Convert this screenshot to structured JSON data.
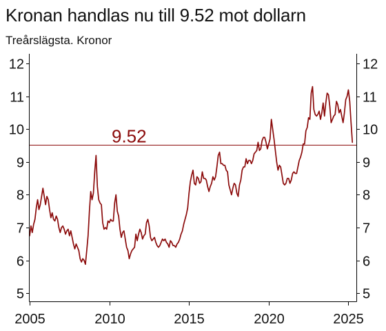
{
  "chart_data": {
    "type": "line",
    "title": "Kronan handlas nu till 9.52 mot dollarn",
    "subtitle": "Treårslägsta. Kronor",
    "xlabel": "",
    "ylabel": "",
    "x_ticks": [
      2005,
      2010,
      2015,
      2020,
      2025
    ],
    "y_ticks": [
      5,
      6,
      7,
      8,
      9,
      10,
      11,
      12
    ],
    "xlim": [
      "2005-01",
      "2025-07"
    ],
    "ylim": [
      4.75,
      12.3
    ],
    "y_axis_right": true,
    "grid": false,
    "reference_line": {
      "value": 9.52,
      "label": "9.52"
    },
    "x": [
      "2005-01",
      "2005-02",
      "2005-03",
      "2005-04",
      "2005-05",
      "2005-06",
      "2005-07",
      "2005-08",
      "2005-09",
      "2005-10",
      "2005-11",
      "2005-12",
      "2006-01",
      "2006-02",
      "2006-03",
      "2006-04",
      "2006-05",
      "2006-06",
      "2006-07",
      "2006-08",
      "2006-09",
      "2006-10",
      "2006-11",
      "2006-12",
      "2007-01",
      "2007-02",
      "2007-03",
      "2007-04",
      "2007-05",
      "2007-06",
      "2007-07",
      "2007-08",
      "2007-09",
      "2007-10",
      "2007-11",
      "2007-12",
      "2008-01",
      "2008-02",
      "2008-03",
      "2008-04",
      "2008-05",
      "2008-06",
      "2008-07",
      "2008-08",
      "2008-09",
      "2008-10",
      "2008-11",
      "2008-12",
      "2009-01",
      "2009-02",
      "2009-03",
      "2009-04",
      "2009-05",
      "2009-06",
      "2009-07",
      "2009-08",
      "2009-09",
      "2009-10",
      "2009-11",
      "2009-12",
      "2010-01",
      "2010-02",
      "2010-03",
      "2010-04",
      "2010-05",
      "2010-06",
      "2010-07",
      "2010-08",
      "2010-09",
      "2010-10",
      "2010-11",
      "2010-12",
      "2011-01",
      "2011-02",
      "2011-03",
      "2011-04",
      "2011-05",
      "2011-06",
      "2011-07",
      "2011-08",
      "2011-09",
      "2011-10",
      "2011-11",
      "2011-12",
      "2012-01",
      "2012-02",
      "2012-03",
      "2012-04",
      "2012-05",
      "2012-06",
      "2012-07",
      "2012-08",
      "2012-09",
      "2012-10",
      "2012-11",
      "2012-12",
      "2013-01",
      "2013-02",
      "2013-03",
      "2013-04",
      "2013-05",
      "2013-06",
      "2013-07",
      "2013-08",
      "2013-09",
      "2013-10",
      "2013-11",
      "2013-12",
      "2014-01",
      "2014-02",
      "2014-03",
      "2014-04",
      "2014-05",
      "2014-06",
      "2014-07",
      "2014-08",
      "2014-09",
      "2014-10",
      "2014-11",
      "2014-12",
      "2015-01",
      "2015-02",
      "2015-03",
      "2015-04",
      "2015-05",
      "2015-06",
      "2015-07",
      "2015-08",
      "2015-09",
      "2015-10",
      "2015-11",
      "2015-12",
      "2016-01",
      "2016-02",
      "2016-03",
      "2016-04",
      "2016-05",
      "2016-06",
      "2016-07",
      "2016-08",
      "2016-09",
      "2016-10",
      "2016-11",
      "2016-12",
      "2017-01",
      "2017-02",
      "2017-03",
      "2017-04",
      "2017-05",
      "2017-06",
      "2017-07",
      "2017-08",
      "2017-09",
      "2017-10",
      "2017-11",
      "2017-12",
      "2018-01",
      "2018-02",
      "2018-03",
      "2018-04",
      "2018-05",
      "2018-06",
      "2018-07",
      "2018-08",
      "2018-09",
      "2018-10",
      "2018-11",
      "2018-12",
      "2019-01",
      "2019-02",
      "2019-03",
      "2019-04",
      "2019-05",
      "2019-06",
      "2019-07",
      "2019-08",
      "2019-09",
      "2019-10",
      "2019-11",
      "2019-12",
      "2020-01",
      "2020-02",
      "2020-03",
      "2020-04",
      "2020-05",
      "2020-06",
      "2020-07",
      "2020-08",
      "2020-09",
      "2020-10",
      "2020-11",
      "2020-12",
      "2021-01",
      "2021-02",
      "2021-03",
      "2021-04",
      "2021-05",
      "2021-06",
      "2021-07",
      "2021-08",
      "2021-09",
      "2021-10",
      "2021-11",
      "2021-12",
      "2022-01",
      "2022-02",
      "2022-03",
      "2022-04",
      "2022-05",
      "2022-06",
      "2022-07",
      "2022-08",
      "2022-09",
      "2022-10",
      "2022-11",
      "2022-12",
      "2023-01",
      "2023-02",
      "2023-03",
      "2023-04",
      "2023-05",
      "2023-06",
      "2023-07",
      "2023-08",
      "2023-09",
      "2023-10",
      "2023-11",
      "2023-12",
      "2024-01",
      "2024-02",
      "2024-03",
      "2024-04",
      "2024-05",
      "2024-06",
      "2024-07",
      "2024-08",
      "2024-09",
      "2024-10",
      "2024-11",
      "2024-12",
      "2025-01",
      "2025-02",
      "2025-03",
      "2025-04"
    ],
    "y": [
      6.75,
      7.05,
      6.85,
      7.1,
      7.25,
      7.6,
      7.85,
      7.55,
      7.7,
      7.95,
      8.2,
      7.95,
      7.7,
      7.95,
      7.85,
      7.55,
      7.3,
      7.45,
      7.25,
      7.2,
      7.35,
      7.25,
      7.0,
      6.85,
      7.0,
      7.05,
      6.95,
      6.8,
      6.9,
      6.95,
      6.75,
      6.9,
      6.7,
      6.5,
      6.35,
      6.5,
      6.4,
      6.3,
      6.05,
      5.95,
      6.05,
      6.0,
      5.88,
      6.3,
      6.75,
      7.5,
      8.1,
      7.85,
      8.05,
      8.7,
      9.2,
      8.25,
      7.85,
      7.75,
      7.7,
      7.15,
      6.95,
      7.0,
      6.95,
      7.2,
      7.15,
      7.25,
      7.2,
      7.2,
      7.75,
      8.0,
      7.5,
      7.35,
      6.95,
      6.7,
      6.85,
      6.9,
      6.65,
      6.4,
      6.3,
      6.05,
      6.2,
      6.3,
      6.35,
      6.4,
      6.8,
      6.6,
      6.8,
      6.95,
      6.85,
      6.65,
      6.75,
      6.8,
      7.15,
      7.25,
      7.05,
      6.7,
      6.6,
      6.65,
      6.7,
      6.55,
      6.45,
      6.4,
      6.45,
      6.55,
      6.65,
      6.6,
      6.65,
      6.55,
      6.5,
      6.4,
      6.6,
      6.55,
      6.45,
      6.45,
      6.4,
      6.5,
      6.55,
      6.65,
      6.8,
      6.9,
      7.1,
      7.25,
      7.4,
      7.6,
      8.05,
      8.4,
      8.6,
      8.75,
      8.35,
      8.3,
      8.55,
      8.5,
      8.35,
      8.4,
      8.7,
      8.5,
      8.5,
      8.45,
      8.25,
      8.1,
      8.25,
      8.35,
      8.55,
      8.45,
      8.55,
      8.85,
      9.2,
      9.3,
      8.95,
      8.95,
      8.9,
      8.9,
      8.75,
      8.7,
      8.3,
      8.15,
      8.0,
      8.2,
      8.35,
      8.3,
      8.05,
      7.95,
      8.3,
      8.45,
      8.75,
      8.85,
      8.85,
      9.1,
      8.95,
      9.05,
      9.05,
      8.95,
      9.05,
      9.25,
      9.3,
      9.35,
      9.6,
      9.35,
      9.4,
      9.65,
      9.75,
      9.75,
      9.6,
      9.4,
      9.55,
      9.7,
      10.3,
      10.0,
      9.7,
      9.35,
      9.0,
      8.75,
      8.9,
      8.85,
      8.6,
      8.35,
      8.3,
      8.35,
      8.5,
      8.5,
      8.35,
      8.45,
      8.65,
      8.7,
      8.65,
      8.65,
      8.85,
      9.05,
      9.15,
      9.3,
      9.55,
      9.55,
      9.95,
      10.05,
      10.35,
      10.3,
      11.1,
      11.3,
      10.6,
      10.45,
      10.4,
      10.45,
      10.55,
      10.3,
      10.5,
      10.8,
      10.4,
      10.8,
      11.1,
      11.05,
      10.7,
      10.2,
      10.3,
      10.4,
      10.45,
      10.85,
      10.75,
      10.5,
      10.6,
      10.4,
      10.2,
      10.5,
      10.9,
      11.0,
      11.2,
      10.85,
      10.2,
      9.6
    ]
  },
  "colors": {
    "series": "#8b0a0a",
    "reference_line": "#8b0a0a",
    "axis": "#000000",
    "text": "#111111"
  }
}
